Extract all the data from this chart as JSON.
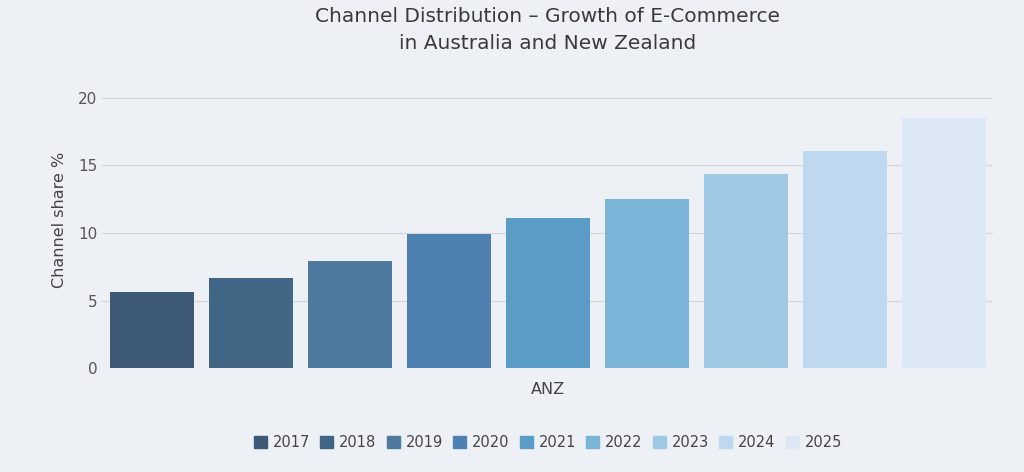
{
  "title": "Channel Distribution – Growth of E-Commerce\nin Australia and New Zealand",
  "xlabel": "ANZ",
  "ylabel": "Channel share %",
  "years": [
    "2017",
    "2018",
    "2019",
    "2020",
    "2021",
    "2022",
    "2023",
    "2024",
    "2025"
  ],
  "values": [
    5.6,
    6.7,
    7.9,
    9.9,
    11.1,
    12.5,
    14.4,
    16.1,
    18.5
  ],
  "bar_colors": [
    "#3d5975",
    "#416585",
    "#4e7aa0",
    "#4e80b0",
    "#5a9cc5",
    "#7ab5d8",
    "#9fc8e5",
    "#bed8ef",
    "#dce8f5"
  ],
  "ylim": [
    0,
    22
  ],
  "yticks": [
    0,
    5,
    10,
    15,
    20
  ],
  "background_color": "#edf0f5",
  "plot_bg_color": "#edf0f5",
  "grid_color": "#d0d5dc",
  "title_fontsize": 14.5,
  "axis_label_fontsize": 11.5,
  "tick_fontsize": 11,
  "legend_fontsize": 10.5
}
